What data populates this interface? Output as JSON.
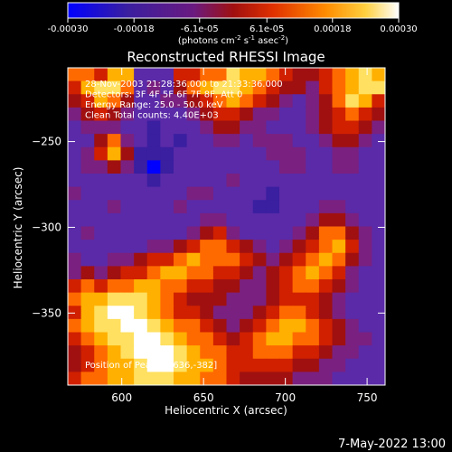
{
  "colorbar": {
    "ticks": [
      "-0.00030",
      "-0.00018",
      "-6.1e-05",
      "6.1e-05",
      "0.00018",
      "0.00030"
    ],
    "tick_values": [
      -0.0003,
      -0.00018,
      -6.1e-05,
      6.1e-05,
      0.00018,
      0.0003
    ],
    "range": [
      -0.0003,
      0.0003
    ],
    "units_text": "(photons cm",
    "units_sup1": "-2",
    "units_mid1": " s",
    "units_sup2": "-1",
    "units_mid2": " asec",
    "units_sup3": "-2",
    "units_end": ")"
  },
  "chart_data": {
    "type": "heatmap",
    "title": "Reconstructed RHESSI Image",
    "xlabel": "Heliocentric X (arcsec)",
    "ylabel": "Heliocentric Y (arcsec)",
    "xlim": [
      567,
      761
    ],
    "ylim": [
      -392,
      -207
    ],
    "xticks": [
      600,
      650,
      700,
      750
    ],
    "xtick_labels": [
      "600",
      "650",
      "700",
      "750"
    ],
    "yticks": [
      -250,
      -300,
      -350
    ],
    "ytick_labels": [
      "−250",
      "−300",
      "−350"
    ],
    "colormap": [
      "#0000ff",
      "#3a1fa0",
      "#5a2aa8",
      "#7a2080",
      "#a01010",
      "#d02000",
      "#ff6a00",
      "#ffb000",
      "#ffe060",
      "#ffffff"
    ],
    "annotations": [
      "28-Nov-2003 21:28:36.000 to 21:33:36.000",
      "Detectors: 3F 4F 5F 6F 7F 8F, Att 0",
      "Energy Range: 25.0 - 50.0 keV",
      "Clean    Total counts: 4.40E+03"
    ],
    "peak_label": "Position of Peak = [636,-382]",
    "grid": [
      [
        6,
        6,
        5,
        7,
        7,
        2,
        2,
        2,
        5,
        5,
        6,
        6,
        8,
        7,
        7,
        6,
        5,
        4,
        4,
        5,
        6,
        7,
        8,
        7
      ],
      [
        5,
        7,
        8,
        8,
        6,
        2,
        3,
        2,
        4,
        6,
        7,
        8,
        8,
        7,
        6,
        5,
        4,
        4,
        3,
        5,
        6,
        7,
        8,
        8
      ],
      [
        4,
        5,
        7,
        6,
        4,
        2,
        2,
        3,
        3,
        4,
        5,
        6,
        7,
        6,
        5,
        4,
        3,
        2,
        3,
        4,
        6,
        8,
        7,
        5
      ],
      [
        3,
        4,
        5,
        4,
        3,
        2,
        2,
        2,
        2,
        3,
        4,
        5,
        5,
        4,
        3,
        3,
        2,
        2,
        3,
        4,
        5,
        6,
        5,
        4
      ],
      [
        2,
        3,
        3,
        3,
        2,
        2,
        1,
        2,
        2,
        2,
        3,
        4,
        4,
        3,
        3,
        2,
        2,
        2,
        3,
        4,
        5,
        5,
        4,
        3
      ],
      [
        2,
        2,
        4,
        6,
        3,
        2,
        1,
        2,
        1,
        2,
        2,
        3,
        3,
        2,
        3,
        3,
        3,
        2,
        2,
        3,
        4,
        4,
        3,
        2
      ],
      [
        2,
        3,
        5,
        7,
        4,
        1,
        1,
        1,
        2,
        2,
        2,
        2,
        2,
        2,
        2,
        3,
        3,
        3,
        2,
        2,
        3,
        3,
        2,
        2
      ],
      [
        2,
        3,
        3,
        4,
        3,
        1,
        0,
        1,
        2,
        2,
        2,
        2,
        2,
        2,
        2,
        2,
        3,
        3,
        2,
        2,
        3,
        3,
        2,
        2
      ],
      [
        2,
        2,
        2,
        2,
        2,
        2,
        1,
        2,
        2,
        2,
        2,
        2,
        3,
        2,
        2,
        2,
        2,
        2,
        2,
        2,
        2,
        2,
        2,
        2
      ],
      [
        3,
        2,
        2,
        2,
        2,
        2,
        2,
        2,
        2,
        3,
        3,
        2,
        2,
        2,
        2,
        1,
        2,
        2,
        2,
        2,
        2,
        2,
        2,
        2
      ],
      [
        2,
        2,
        2,
        3,
        2,
        2,
        2,
        2,
        3,
        2,
        2,
        2,
        2,
        2,
        1,
        1,
        2,
        2,
        2,
        3,
        3,
        2,
        2,
        2
      ],
      [
        2,
        2,
        2,
        2,
        2,
        2,
        2,
        2,
        2,
        2,
        3,
        3,
        2,
        2,
        2,
        2,
        2,
        2,
        3,
        4,
        4,
        3,
        2,
        2
      ],
      [
        2,
        3,
        2,
        2,
        2,
        2,
        2,
        2,
        2,
        3,
        4,
        5,
        3,
        2,
        2,
        2,
        2,
        3,
        4,
        6,
        6,
        4,
        3,
        2
      ],
      [
        2,
        2,
        2,
        2,
        2,
        2,
        3,
        3,
        4,
        5,
        6,
        6,
        5,
        4,
        3,
        2,
        3,
        4,
        5,
        6,
        7,
        5,
        3,
        2
      ],
      [
        3,
        2,
        2,
        3,
        3,
        4,
        5,
        5,
        6,
        7,
        6,
        6,
        6,
        5,
        4,
        3,
        4,
        5,
        6,
        7,
        6,
        4,
        3,
        2
      ],
      [
        3,
        4,
        3,
        4,
        5,
        5,
        6,
        7,
        7,
        6,
        6,
        5,
        5,
        4,
        3,
        4,
        5,
        6,
        7,
        6,
        5,
        3,
        2,
        2
      ],
      [
        5,
        6,
        5,
        6,
        6,
        7,
        7,
        6,
        6,
        5,
        5,
        4,
        4,
        3,
        3,
        4,
        5,
        6,
        6,
        5,
        4,
        3,
        2,
        2
      ],
      [
        6,
        7,
        7,
        8,
        8,
        8,
        7,
        6,
        5,
        4,
        4,
        4,
        3,
        3,
        3,
        4,
        5,
        5,
        5,
        4,
        3,
        2,
        2,
        2
      ],
      [
        5,
        7,
        8,
        9,
        9,
        8,
        7,
        6,
        5,
        5,
        4,
        3,
        3,
        3,
        4,
        5,
        6,
        6,
        5,
        4,
        3,
        2,
        2,
        2
      ],
      [
        6,
        7,
        8,
        8,
        9,
        9,
        8,
        7,
        6,
        6,
        5,
        4,
        3,
        4,
        5,
        6,
        7,
        7,
        6,
        5,
        4,
        3,
        2,
        2
      ],
      [
        5,
        6,
        7,
        8,
        8,
        9,
        9,
        8,
        7,
        6,
        6,
        5,
        4,
        5,
        6,
        7,
        7,
        6,
        6,
        5,
        4,
        3,
        3,
        2
      ],
      [
        4,
        5,
        6,
        7,
        8,
        9,
        9,
        9,
        8,
        7,
        6,
        6,
        5,
        5,
        6,
        6,
        6,
        5,
        5,
        4,
        3,
        3,
        2,
        2
      ],
      [
        4,
        5,
        6,
        7,
        7,
        8,
        9,
        9,
        8,
        7,
        7,
        6,
        5,
        5,
        5,
        5,
        5,
        4,
        4,
        3,
        3,
        2,
        2,
        2
      ],
      [
        5,
        6,
        6,
        7,
        7,
        8,
        8,
        8,
        7,
        7,
        6,
        6,
        5,
        4,
        4,
        4,
        4,
        3,
        3,
        3,
        2,
        2,
        2,
        2
      ]
    ]
  },
  "footer": {
    "date_stamp": "7-May-2022 13:00"
  }
}
